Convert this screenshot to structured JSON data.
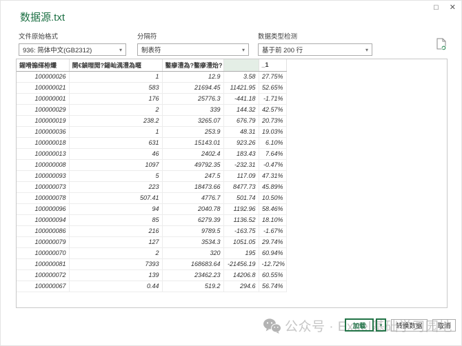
{
  "window": {
    "title": "数据源.txt"
  },
  "controls": {
    "maximize_icon": "□",
    "close_icon": "✕"
  },
  "toolbar": {
    "encoding": {
      "label": "文件原始格式",
      "value": "936: 简体中文(GB2312)"
    },
    "delimiter": {
      "label": "分隔符",
      "value": "制表符"
    },
    "type_detection": {
      "label": "数据类型检测",
      "value": "基于前 200 行"
    },
    "caret": "▾",
    "refresh_icon": "file-refresh-preview"
  },
  "table": {
    "headers": [
      "鍟嗗搧缂栫爜",
      "閿€鍞暟閲?鍚屾湡澧為暱",
      "鐜瘮澧為?鐜瘮澧炲?",
      "",
      "_1"
    ],
    "highlight_column_index": 3,
    "rows": [
      [
        "100000026",
        "1",
        "12.9",
        "3.58",
        "27.75%"
      ],
      [
        "100000021",
        "583",
        "21694.45",
        "11421.95",
        "52.65%"
      ],
      [
        "100000001",
        "176",
        "25776.3",
        "-441.18",
        "-1.71%"
      ],
      [
        "100000029",
        "2",
        "339",
        "144.32",
        "42.57%"
      ],
      [
        "100000019",
        "238.2",
        "3265.07",
        "676.79",
        "20.73%"
      ],
      [
        "100000036",
        "1",
        "253.9",
        "48.31",
        "19.03%"
      ],
      [
        "100000018",
        "631",
        "15143.01",
        "923.26",
        "6.10%"
      ],
      [
        "100000013",
        "46",
        "2402.4",
        "183.43",
        "7.64%"
      ],
      [
        "100000008",
        "1097",
        "49792.35",
        "-232.31",
        "-0.47%"
      ],
      [
        "100000093",
        "5",
        "247.5",
        "117.09",
        "47.31%"
      ],
      [
        "100000073",
        "223",
        "18473.66",
        "8477.73",
        "45.89%"
      ],
      [
        "100000078",
        "507.41",
        "4776.7",
        "501.74",
        "10.50%"
      ],
      [
        "100000096",
        "94",
        "2040.78",
        "1192.96",
        "58.46%"
      ],
      [
        "100000094",
        "85",
        "6279.39",
        "1136.52",
        "18.10%"
      ],
      [
        "100000086",
        "216",
        "9789.5",
        "-163.75",
        "-1.67%"
      ],
      [
        "100000079",
        "127",
        "3534.3",
        "1051.05",
        "29.74%"
      ],
      [
        "100000070",
        "2",
        "320",
        "195",
        "60.94%"
      ],
      [
        "100000081",
        "7393",
        "168683.64",
        "-21456.19",
        "-12.72%"
      ],
      [
        "100000072",
        "139",
        "23462.23",
        "14206.8",
        "60.55%"
      ],
      [
        "100000067",
        "0.44",
        "519.2",
        "294.6",
        "56.74%"
      ]
    ]
  },
  "footer": {
    "watermark_text": "公众号 · Excel基础学习园地",
    "load_label": "加载",
    "load_arrow": "▾",
    "transform_label": "转换数据",
    "cancel_label": "取消"
  },
  "colors": {
    "accent_green": "#217346",
    "title_green": "#1e7145",
    "header_highlight": "#e4eee6",
    "watermark_gray": "#c6c6c6"
  }
}
